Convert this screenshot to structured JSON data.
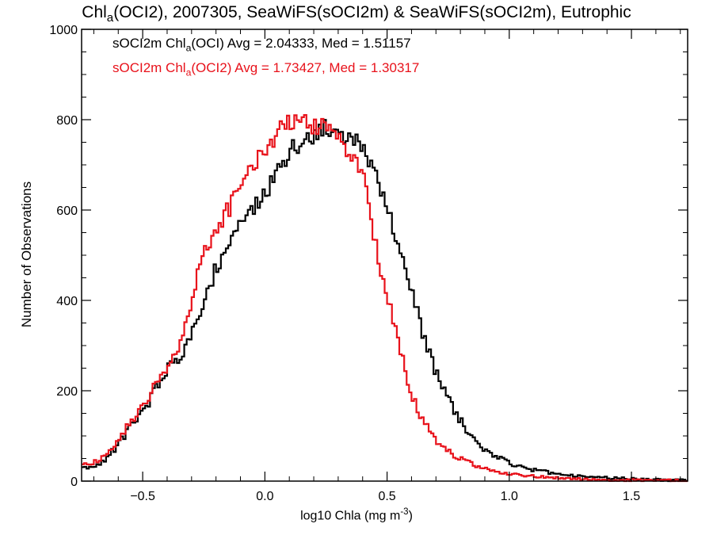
{
  "chart_data": {
    "type": "histogram",
    "title": {
      "prefix": "Chl",
      "sub": "a",
      "suffix": "(OCI2), 2007305, SeaWiFS(sOCI2m) & SeaWiFS(sOCI2m), Eutrophic"
    },
    "xlabel": {
      "prefix": "log10 Chla (mg m",
      "sup": "-3",
      "suffix": ")"
    },
    "ylabel": "Number of Observations",
    "xlim": [
      -0.75,
      1.73
    ],
    "ylim": [
      0,
      1000
    ],
    "x_ticks": [
      -0.5,
      0.0,
      0.5,
      1.0,
      1.5
    ],
    "x_tick_labels": [
      "−0.5",
      "0.0",
      "0.5",
      "1.0",
      "1.5"
    ],
    "y_ticks": [
      0,
      200,
      400,
      600,
      800,
      1000
    ],
    "y_tick_labels": [
      "0",
      "200",
      "400",
      "600",
      "800",
      "1000"
    ],
    "grid": false,
    "legend_placement": "top-left",
    "legend": [
      {
        "prefix": "sOCI2m Chl",
        "sub": "a",
        "suffix": "(OCI) Avg = 2.04333, Med = 1.51157",
        "color": "#000000"
      },
      {
        "prefix": "sOCI2m Chl",
        "sub": "a",
        "suffix": "(OCI2) Avg = 1.73427, Med = 1.30317",
        "color": "#e8121b"
      }
    ],
    "bin_width": 0.01,
    "series": [
      {
        "color": "#000000",
        "points": [
          [
            -0.75,
            30
          ],
          [
            -0.7,
            30
          ],
          [
            -0.65,
            50
          ],
          [
            -0.6,
            80
          ],
          [
            -0.55,
            120
          ],
          [
            -0.5,
            150
          ],
          [
            -0.45,
            200
          ],
          [
            -0.4,
            250
          ],
          [
            -0.35,
            270
          ],
          [
            -0.3,
            320
          ],
          [
            -0.25,
            400
          ],
          [
            -0.2,
            470
          ],
          [
            -0.15,
            530
          ],
          [
            -0.1,
            570
          ],
          [
            -0.05,
            600
          ],
          [
            0.0,
            640
          ],
          [
            0.05,
            680
          ],
          [
            0.1,
            730
          ],
          [
            0.15,
            750
          ],
          [
            0.2,
            770
          ],
          [
            0.25,
            780
          ],
          [
            0.3,
            770
          ],
          [
            0.35,
            760
          ],
          [
            0.4,
            740
          ],
          [
            0.45,
            690
          ],
          [
            0.5,
            610
          ],
          [
            0.55,
            510
          ],
          [
            0.6,
            420
          ],
          [
            0.65,
            320
          ],
          [
            0.7,
            240
          ],
          [
            0.75,
            180
          ],
          [
            0.8,
            135
          ],
          [
            0.85,
            95
          ],
          [
            0.9,
            70
          ],
          [
            0.95,
            55
          ],
          [
            1.0,
            40
          ],
          [
            1.1,
            25
          ],
          [
            1.2,
            16
          ],
          [
            1.3,
            10
          ],
          [
            1.4,
            7
          ],
          [
            1.5,
            5
          ],
          [
            1.6,
            3
          ],
          [
            1.73,
            2
          ]
        ]
      },
      {
        "color": "#e8121b",
        "points": [
          [
            -0.75,
            40
          ],
          [
            -0.7,
            40
          ],
          [
            -0.65,
            60
          ],
          [
            -0.6,
            90
          ],
          [
            -0.55,
            130
          ],
          [
            -0.5,
            165
          ],
          [
            -0.45,
            210
          ],
          [
            -0.4,
            250
          ],
          [
            -0.35,
            300
          ],
          [
            -0.3,
            400
          ],
          [
            -0.25,
            510
          ],
          [
            -0.2,
            560
          ],
          [
            -0.15,
            600
          ],
          [
            -0.1,
            650
          ],
          [
            -0.05,
            690
          ],
          [
            0.0,
            740
          ],
          [
            0.05,
            770
          ],
          [
            0.1,
            800
          ],
          [
            0.15,
            805
          ],
          [
            0.2,
            790
          ],
          [
            0.25,
            780
          ],
          [
            0.3,
            760
          ],
          [
            0.35,
            730
          ],
          [
            0.4,
            680
          ],
          [
            0.45,
            530
          ],
          [
            0.5,
            410
          ],
          [
            0.55,
            300
          ],
          [
            0.6,
            190
          ],
          [
            0.65,
            130
          ],
          [
            0.7,
            90
          ],
          [
            0.75,
            65
          ],
          [
            0.8,
            50
          ],
          [
            0.85,
            38
          ],
          [
            0.9,
            28
          ],
          [
            0.95,
            20
          ],
          [
            1.0,
            16
          ],
          [
            1.1,
            11
          ],
          [
            1.2,
            7
          ],
          [
            1.3,
            5
          ],
          [
            1.4,
            3
          ],
          [
            1.5,
            2
          ],
          [
            1.6,
            2
          ],
          [
            1.73,
            1
          ]
        ]
      }
    ]
  }
}
